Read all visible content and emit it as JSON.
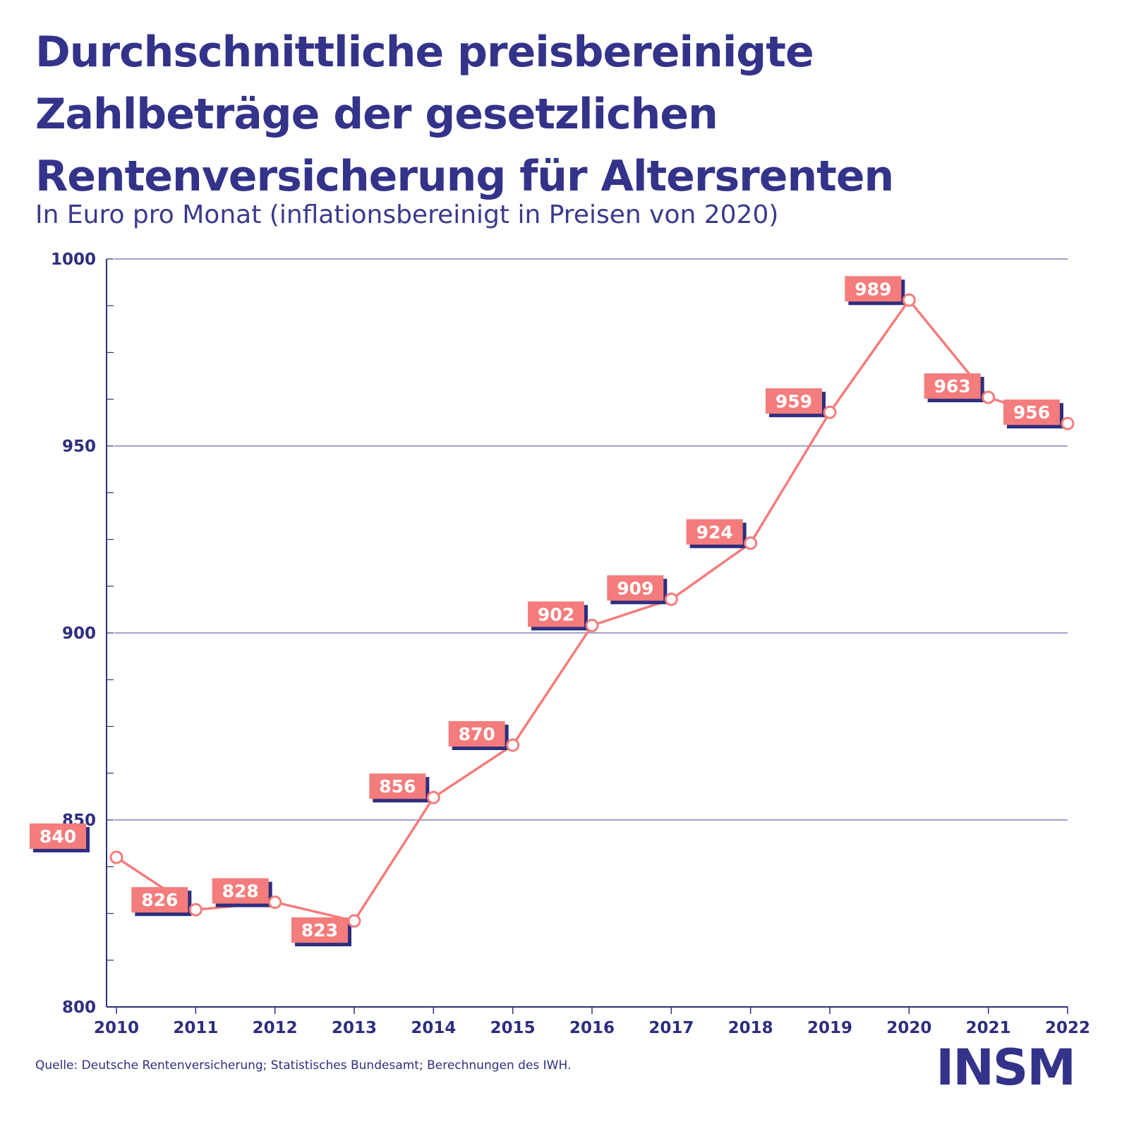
{
  "colors": {
    "title": "#33338a",
    "line": "#f47c7c",
    "label_fill": "#f47c7c",
    "label_border": "#2e2e7e",
    "grid": "#6b6bb0",
    "axis": "#2e2e7e"
  },
  "header": {
    "title_lines": [
      "Durchschnittliche preisbereinigte",
      "Zahlbeträge der gesetzlichen",
      "Rentenversicherung für Altersrenten"
    ],
    "subtitle": "In Euro pro Monat (inflationsbereinigt in Preisen von 2020)"
  },
  "footer": {
    "source": "Quelle: Deutsche Rentenversicherung; Statistisches Bundesamt; Berechnungen des IWH.",
    "logo": "INSM"
  },
  "chart_data": {
    "type": "line",
    "title": "Durchschnittliche preisbereinigte Zahlbeträge der gesetzlichen Rentenversicherung für Altersrenten",
    "subtitle": "In Euro pro Monat (inflationsbereinigt in Preisen von 2020)",
    "xlabel": "",
    "ylabel": "",
    "x": [
      "2010",
      "2011",
      "2012",
      "2013",
      "2014",
      "2015",
      "2016",
      "2017",
      "2018",
      "2019",
      "2020",
      "2021",
      "2022"
    ],
    "series": [
      {
        "values": [
          840,
          826,
          828,
          823,
          856,
          870,
          902,
          909,
          924,
          959,
          989,
          963,
          956
        ]
      }
    ],
    "ylim": [
      800,
      1000
    ],
    "yticks": [
      800,
      850,
      900,
      950,
      1000
    ],
    "grid": true,
    "data_labels": true,
    "legend": "none"
  }
}
